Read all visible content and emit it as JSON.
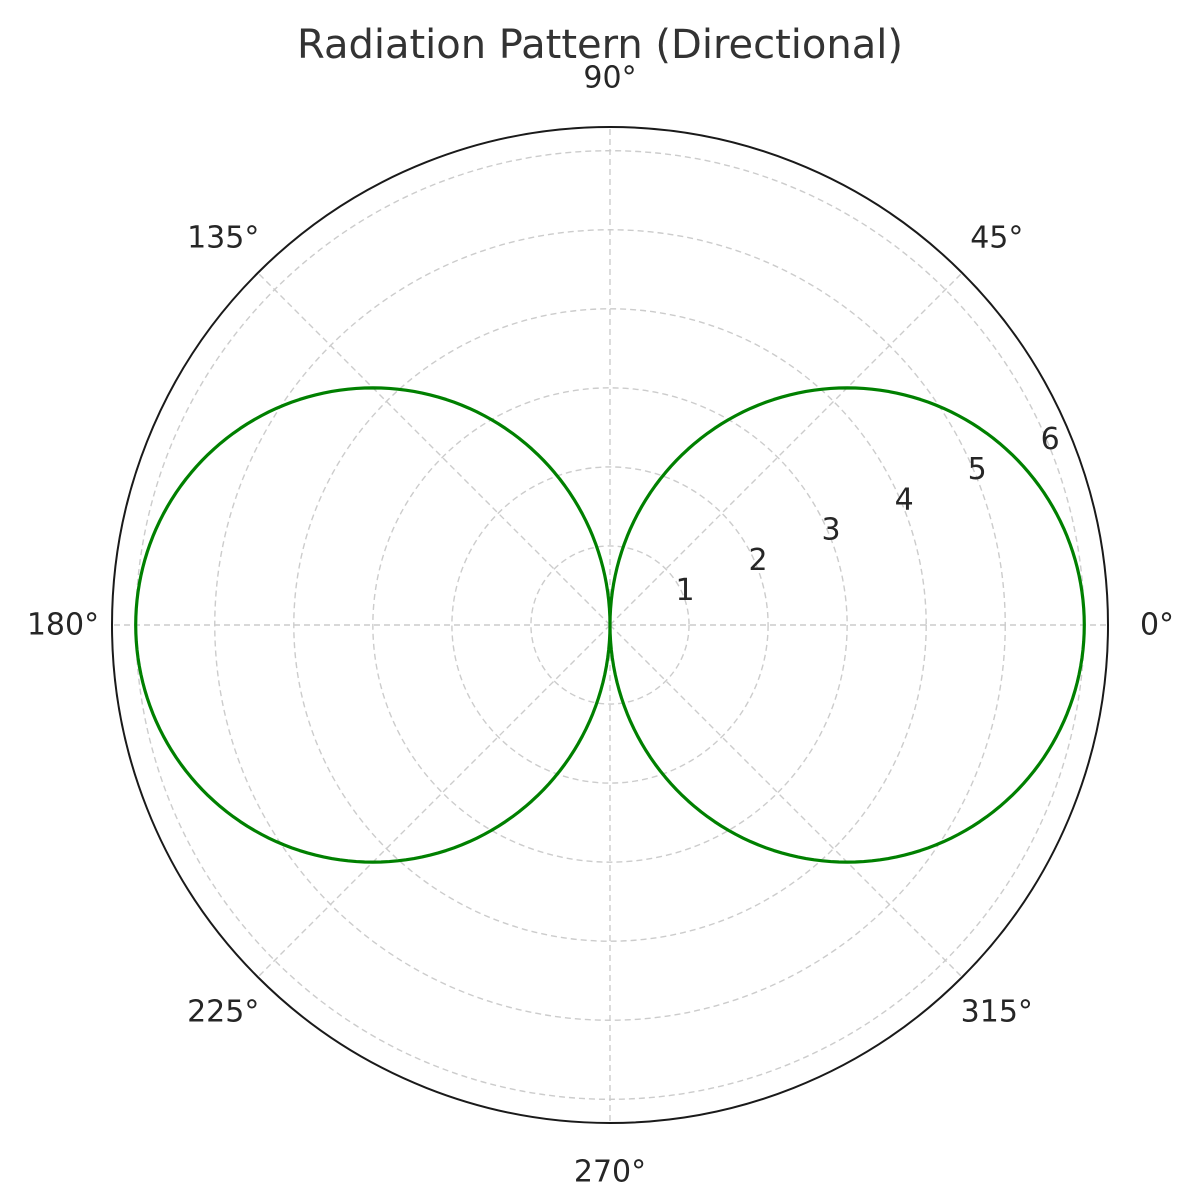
{
  "chart_data": {
    "type": "line",
    "projection": "polar",
    "title": "Radiation Pattern (Directional)",
    "theta_unit": "degrees",
    "theta_zero_location": "right",
    "theta_direction": "counterclockwise",
    "theta_ticks": [
      0,
      45,
      90,
      135,
      180,
      225,
      270,
      315
    ],
    "theta_tick_labels": [
      "0°",
      "45°",
      "90°",
      "135°",
      "180°",
      "225°",
      "270°",
      "315°"
    ],
    "r_ticks": [
      1,
      2,
      3,
      4,
      5,
      6
    ],
    "r_tick_labels": [
      "1",
      "2",
      "3",
      "4",
      "5",
      "6"
    ],
    "rlim": [
      0,
      6.3
    ],
    "r_label_angle_deg": 22.5,
    "grid": true,
    "series": [
      {
        "color": "#008000",
        "function": "r = 6 * |cos(theta)|",
        "theta": [
          0,
          15,
          30,
          45,
          60,
          75,
          90,
          105,
          120,
          135,
          150,
          165,
          180,
          195,
          210,
          225,
          240,
          255,
          270,
          285,
          300,
          315,
          330,
          345,
          360
        ],
        "r": [
          6.0,
          5.8,
          5.2,
          4.24,
          3.0,
          1.55,
          0.0,
          1.55,
          3.0,
          4.24,
          5.2,
          5.8,
          6.0,
          5.8,
          5.2,
          4.24,
          3.0,
          1.55,
          0.0,
          1.55,
          3.0,
          4.24,
          5.2,
          5.8,
          6.0
        ]
      }
    ]
  }
}
